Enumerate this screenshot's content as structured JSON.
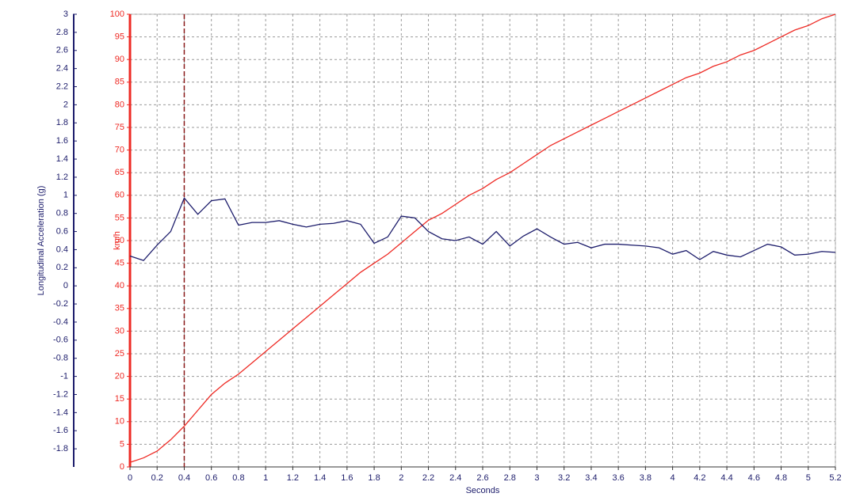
{
  "chart_data": {
    "type": "line",
    "x_label": "Seconds",
    "y_label": "km/h",
    "y2_label": "Longitudinal Acceleration (g)",
    "x": [
      0,
      0.1,
      0.2,
      0.3,
      0.4,
      0.5,
      0.6,
      0.7,
      0.8,
      0.9,
      1,
      1.1,
      1.2,
      1.3,
      1.4,
      1.5,
      1.6,
      1.7,
      1.8,
      1.9,
      2,
      2.1,
      2.2,
      2.3,
      2.4,
      2.5,
      2.6,
      2.7,
      2.8,
      2.9,
      3,
      3.1,
      3.2,
      3.3,
      3.4,
      3.5,
      3.6,
      3.7,
      3.8,
      3.9,
      4,
      4.1,
      4.2,
      4.3,
      4.4,
      4.5,
      4.6,
      4.7,
      4.8,
      4.9,
      5,
      5.1,
      5.2
    ],
    "series": [
      {
        "name": "km/h",
        "color": "#ee2a24",
        "axis": "y",
        "values": [
          1,
          2,
          3.5,
          6,
          9,
          12.5,
          16,
          18.5,
          20.5,
          23,
          25.5,
          28,
          30.5,
          33,
          35.5,
          38,
          40.5,
          43,
          45,
          47,
          49.5,
          52,
          54.5,
          56,
          58,
          60,
          61.5,
          63.5,
          65,
          67,
          69,
          71,
          72.5,
          74,
          75.5,
          77,
          78.5,
          80,
          81.5,
          83,
          84.5,
          86,
          87,
          88.5,
          89.5,
          91,
          92,
          93.5,
          95,
          96.5,
          97.5,
          99,
          100
        ]
      },
      {
        "name": "Longitudinal Acceleration (g)",
        "color": "#1c1c6b",
        "axis": "y2",
        "values": [
          0.33,
          0.28,
          0.45,
          0.6,
          0.97,
          0.79,
          0.94,
          0.96,
          0.67,
          0.7,
          0.7,
          0.72,
          0.68,
          0.65,
          0.68,
          0.69,
          0.72,
          0.68,
          0.47,
          0.54,
          0.77,
          0.75,
          0.6,
          0.52,
          0.5,
          0.54,
          0.46,
          0.6,
          0.44,
          0.55,
          0.63,
          0.54,
          0.46,
          0.48,
          0.42,
          0.46,
          0.46,
          0.45,
          0.44,
          0.42,
          0.35,
          0.39,
          0.29,
          0.38,
          0.34,
          0.32,
          0.39,
          0.46,
          0.43,
          0.34,
          0.35,
          0.38,
          0.37
        ]
      }
    ],
    "xlim": [
      0,
      5.2
    ],
    "xticks": [
      0,
      0.2,
      0.4,
      0.6,
      0.8,
      1,
      1.2,
      1.4,
      1.6,
      1.8,
      2,
      2.2,
      2.4,
      2.6,
      2.8,
      3,
      3.2,
      3.4,
      3.6,
      3.8,
      4,
      4.2,
      4.4,
      4.6,
      4.8,
      5,
      5.2
    ],
    "ylim": [
      0,
      100
    ],
    "yticks": [
      0,
      5,
      10,
      15,
      20,
      25,
      30,
      35,
      40,
      45,
      50,
      55,
      60,
      65,
      70,
      75,
      80,
      85,
      90,
      95,
      100
    ],
    "y2lim": [
      -2,
      3
    ],
    "y2ticks": [
      -1.8,
      -1.6,
      -1.4,
      -1.2,
      -1,
      -0.8,
      -0.6,
      -0.4,
      -0.2,
      0,
      0.2,
      0.4,
      0.6,
      0.8,
      1,
      1.2,
      1.4,
      1.6,
      1.8,
      2,
      2.2,
      2.4,
      2.6,
      2.8,
      3
    ],
    "grid": true,
    "cursor_x": 0.4,
    "cursor_color": "#8b1a1a"
  }
}
